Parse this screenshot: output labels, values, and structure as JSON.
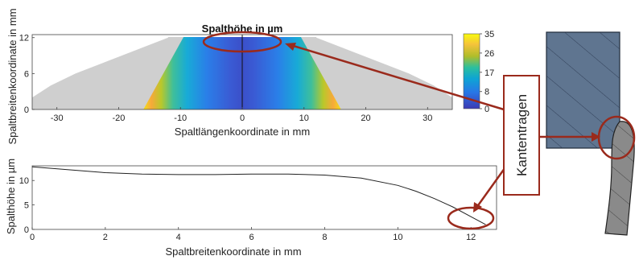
{
  "chart_data": [
    {
      "type": "heatmap",
      "title": "Spalthöhe in µm",
      "xlabel": "Spaltlängenkoordinate in mm",
      "ylabel": "Spaltbreitenkoordinate in mm",
      "xlim": [
        -34,
        34
      ],
      "ylim": [
        0,
        12.5
      ],
      "xticks": [
        "-30",
        "-20",
        "-10",
        "0",
        "10",
        "20",
        "30"
      ],
      "xtick_values": [
        -30,
        -20,
        -10,
        0,
        10,
        20,
        30
      ],
      "yticks": [
        "0",
        "6",
        "12"
      ],
      "ytick_values": [
        0,
        6,
        12
      ],
      "colorbar": {
        "range": [
          0,
          35
        ],
        "ticks": [
          "35",
          "26",
          "17",
          "8",
          "0"
        ],
        "tick_values": [
          35,
          26,
          17,
          8,
          0
        ],
        "colormap": "parula"
      },
      "grey_region_halfwidth": {
        "at_y": [
          0,
          2,
          4,
          6,
          8,
          10,
          12
        ],
        "x": [
          34,
          34,
          31,
          27,
          22,
          17,
          12
        ]
      },
      "colored_region_halfwidth": {
        "at_y": [
          0,
          12
        ],
        "x": [
          16,
          9.5
        ]
      },
      "colored_bands": {
        "yellow_at_edges_x": [
          -15,
          15
        ],
        "blue_center_x": [
          -8,
          8
        ],
        "minimum_at_x": 0
      }
    },
    {
      "type": "line",
      "xlabel": "Spaltbreitenkoordinate in mm",
      "ylabel": "Spalthöhe in µm",
      "xlim": [
        0,
        12.7
      ],
      "ylim": [
        0,
        13
      ],
      "xticks": [
        "0",
        "2",
        "4",
        "6",
        "8",
        "10",
        "12"
      ],
      "xtick_values": [
        0,
        2,
        4,
        6,
        8,
        10,
        12
      ],
      "yticks": [
        "0",
        "5",
        "10"
      ],
      "ytick_values": [
        0,
        5,
        10
      ],
      "series": [
        {
          "x": [
            0,
            1,
            2,
            3,
            4,
            5,
            6,
            7,
            8,
            9,
            10,
            10.5,
            11,
            11.5,
            12,
            12.4
          ],
          "y": [
            12.8,
            12.2,
            11.6,
            11.3,
            11.2,
            11.2,
            11.3,
            11.3,
            11.1,
            10.5,
            9.0,
            7.8,
            6.3,
            4.6,
            2.6,
            1.0
          ]
        }
      ]
    }
  ],
  "annotation": {
    "label": "Kantentragen"
  },
  "colors": {
    "annotation": "#9a2a1c",
    "grey_region": "#cfcfcf",
    "tool_block": "#5f7590",
    "workpiece": "#8a8a8a"
  }
}
